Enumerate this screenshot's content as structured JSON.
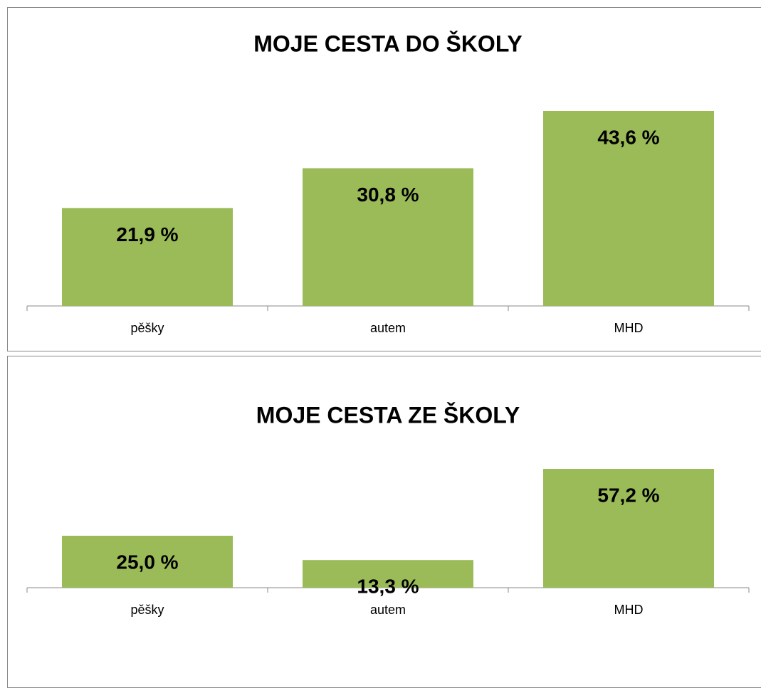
{
  "chart_data": [
    {
      "type": "bar",
      "title": "MOJE CESTA DO ŠKOLY",
      "categories": [
        "pěšky",
        "autem",
        "MHD"
      ],
      "values": [
        21.9,
        30.8,
        43.6
      ],
      "value_labels": [
        "21,9 %",
        "30,8 %",
        "43,6 %"
      ],
      "color": "#9bbb59"
    },
    {
      "type": "bar",
      "title": "MOJE CESTA ZE ŠKOLY",
      "categories": [
        "pěšky",
        "autem",
        "MHD"
      ],
      "values": [
        25.0,
        13.3,
        57.2
      ],
      "value_labels": [
        "25,0 %",
        "13,3 %",
        "57,2 %"
      ],
      "color": "#9bbb59"
    }
  ]
}
